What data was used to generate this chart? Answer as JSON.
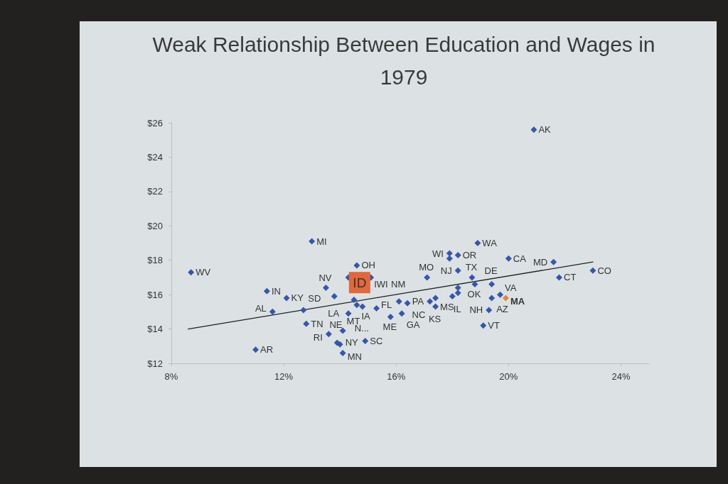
{
  "chart_data": {
    "type": "scatter",
    "title": "Weak Relationship Between Education and Wages in 1979",
    "xlim": [
      8,
      25
    ],
    "xticks": [
      {
        "value": 8,
        "label": "8%"
      },
      {
        "value": 12,
        "label": "12%"
      },
      {
        "value": 16,
        "label": "16%"
      },
      {
        "value": 20,
        "label": "20%"
      },
      {
        "value": 24,
        "label": "24%"
      }
    ],
    "ylim": [
      12,
      26
    ],
    "yticks": [
      {
        "value": 12,
        "label": "$12"
      },
      {
        "value": 14,
        "label": "$14"
      },
      {
        "value": 16,
        "label": "$16"
      },
      {
        "value": 18,
        "label": "$18"
      },
      {
        "value": 20,
        "label": "$20"
      },
      {
        "value": 22,
        "label": "$22"
      },
      {
        "value": 24,
        "label": "$24"
      },
      {
        "value": 26,
        "label": "$26"
      }
    ],
    "grid": false,
    "series": [
      {
        "color": "#3556b0",
        "marker": "diamond",
        "x": [
          8.7,
          11.0,
          11.4,
          11.6,
          12.1,
          12.7,
          12.8,
          13.0,
          13.5,
          13.6,
          13.8,
          13.9,
          14.0,
          14.1,
          14.1,
          14.3,
          14.3,
          14.5,
          14.6,
          14.6,
          14.8,
          14.9,
          15.1,
          15.3,
          15.8,
          16.1,
          16.2,
          16.4,
          17.1,
          17.2,
          17.4,
          17.4,
          17.9,
          17.9,
          18.0,
          18.2,
          18.2,
          18.2,
          18.2,
          18.7,
          18.8,
          18.9,
          19.1,
          19.3,
          19.4,
          19.4,
          19.7,
          20.0,
          20.9,
          21.6,
          21.8,
          23.0
        ],
        "values": [
          17.3,
          12.8,
          16.2,
          15.0,
          15.8,
          15.1,
          14.3,
          19.1,
          16.4,
          13.7,
          15.9,
          13.2,
          13.1,
          12.6,
          13.9,
          14.9,
          17.0,
          15.7,
          15.4,
          17.7,
          15.3,
          13.3,
          17.0,
          15.2,
          14.7,
          15.6,
          14.9,
          15.5,
          17.0,
          15.6,
          15.3,
          15.8,
          18.1,
          18.4,
          15.9,
          16.1,
          16.4,
          17.4,
          18.3,
          17.0,
          16.6,
          19.0,
          14.2,
          15.1,
          15.8,
          16.6,
          16.0,
          18.1,
          25.6,
          17.9,
          17.0,
          17.4
        ],
        "value_labels": [
          "WV",
          "AR",
          "IN",
          "AL",
          "KY",
          "SD",
          "TN",
          "MI",
          "NV",
          "RI",
          "LA",
          "NY",
          null,
          "MN",
          null,
          "NE",
          null,
          "MT",
          "IA",
          "OH",
          "N...",
          "SC",
          "IWI",
          "FL",
          "ME",
          "NM",
          "GA",
          "NC",
          "MO",
          "PA",
          "MS",
          "KS",
          null,
          "WI",
          null,
          null,
          "IL",
          "NJ",
          "OR",
          "TX",
          "OK",
          "WA",
          "VT",
          "NH",
          "AZ",
          "DE",
          "VA",
          "CA",
          "AK",
          "MD",
          "CT",
          "CO"
        ]
      },
      {
        "color": "#e2673a",
        "marker": "square",
        "x": [
          14.7
        ],
        "values": [
          16.7
        ],
        "value_labels": [
          "ID"
        ]
      },
      {
        "color": "#e8862f",
        "marker": "diamond",
        "x": [
          19.9
        ],
        "values": [
          15.8
        ],
        "value_labels": [
          "MA"
        ]
      },
      {
        "type": "line",
        "color": "#222222",
        "marker": "none",
        "line_style": "solid",
        "x": [
          8.6,
          23.0
        ],
        "values": [
          14.0,
          17.9
        ]
      }
    ]
  }
}
